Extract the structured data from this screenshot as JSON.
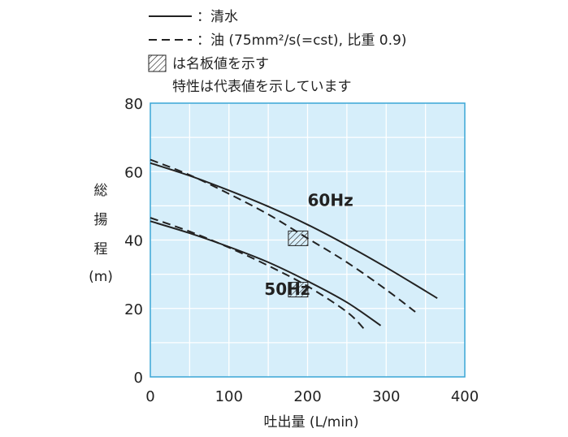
{
  "chart_data": {
    "type": "line",
    "xlabel": "吐出量 (L/min)",
    "ylabel_chars": [
      "総",
      "揚",
      "程",
      "(m)"
    ],
    "xlim": [
      0,
      400
    ],
    "ylim": [
      0,
      80
    ],
    "x_ticks": [
      0,
      100,
      200,
      300,
      400
    ],
    "y_ticks": [
      0,
      20,
      40,
      60,
      80
    ],
    "grid": true,
    "plot_background": "#d6eefa",
    "frame_color": "#3aa6d6",
    "legend": [
      {
        "style": "solid",
        "text": "：清水"
      },
      {
        "style": "dashed",
        "text": "：油 (75mm²/s(=cst), 比重 0.9)"
      },
      {
        "style": "hatch",
        "text": "は名板値を示す"
      },
      {
        "style": "none",
        "text": "特性は代表値を示しています"
      }
    ],
    "series": [
      {
        "label": "60Hz",
        "fluid": "清水",
        "style": "solid",
        "x": [
          0,
          50,
          100,
          150,
          200,
          250,
          300,
          365
        ],
        "y": [
          62.5,
          58.8,
          54.5,
          49.8,
          44.5,
          38.5,
          32.0,
          23.0
        ]
      },
      {
        "label": "60Hz",
        "fluid": "油",
        "style": "dashed",
        "x": [
          0,
          50,
          100,
          150,
          200,
          250,
          300,
          337
        ],
        "y": [
          63.5,
          59.0,
          53.5,
          47.5,
          40.5,
          33.5,
          25.5,
          19.0
        ]
      },
      {
        "label": "50Hz",
        "fluid": "清水",
        "style": "solid",
        "x": [
          0,
          50,
          100,
          150,
          200,
          250,
          293
        ],
        "y": [
          45.5,
          42.0,
          38.0,
          33.5,
          28.0,
          21.8,
          15.0
        ]
      },
      {
        "label": "50Hz",
        "fluid": "油",
        "style": "dashed",
        "x": [
          0,
          50,
          100,
          150,
          200,
          250,
          272
        ],
        "y": [
          46.5,
          42.5,
          37.8,
          32.5,
          26.5,
          19.0,
          14.0
        ]
      }
    ],
    "series_labels": [
      {
        "text": "60Hz",
        "x": 200,
        "y": 50
      },
      {
        "text": "50Hz",
        "x": 145,
        "y": 24
      }
    ],
    "rated_points": [
      {
        "x": 188,
        "y": 40.5,
        "series": "60Hz"
      },
      {
        "x": 188,
        "y": 25.5,
        "series": "50Hz"
      }
    ]
  }
}
